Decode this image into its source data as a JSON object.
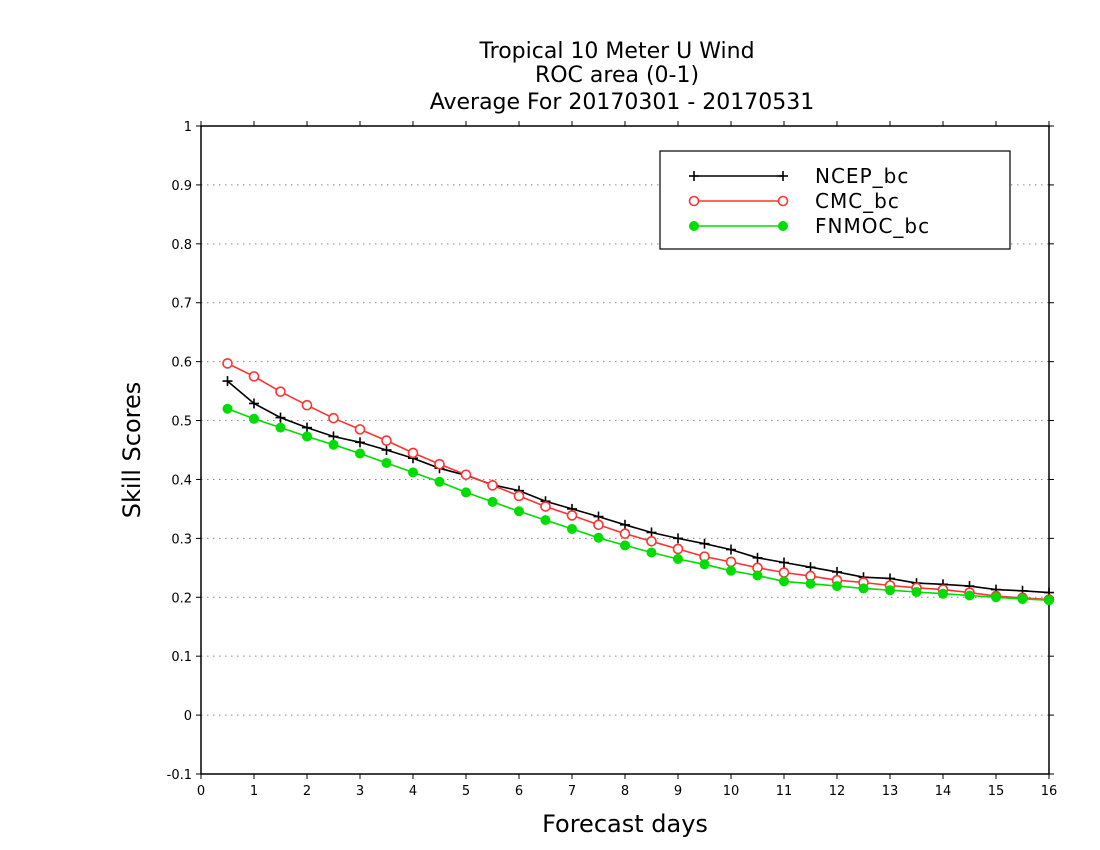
{
  "chart_data": {
    "type": "line",
    "title_lines": [
      "Tropical 10 Meter U Wind",
      "ROC area (0-1)",
      "Average For 20170301 - 20170531"
    ],
    "xlabel": "Forecast days",
    "ylabel": "Skill Scores",
    "xlim": [
      0,
      16
    ],
    "ylim": [
      -0.1,
      1
    ],
    "x_ticks": [
      "0",
      "1",
      "2",
      "3",
      "4",
      "5",
      "6",
      "7",
      "8",
      "9",
      "10",
      "11",
      "12",
      "13",
      "14",
      "15",
      "16"
    ],
    "y_ticks": [
      "-0.1",
      "0",
      "0.1",
      "0.2",
      "0.3",
      "0.4",
      "0.5",
      "0.6",
      "0.7",
      "0.8",
      "0.9",
      "1"
    ],
    "grid": "horizontal dotted",
    "legend_position": "top-right",
    "x": [
      0.5,
      1,
      1.5,
      2,
      2.5,
      3,
      3.5,
      4,
      4.5,
      5,
      5.5,
      6,
      6.5,
      7,
      7.5,
      8,
      8.5,
      9,
      9.5,
      10,
      10.5,
      11,
      11.5,
      12,
      12.5,
      13,
      13.5,
      14,
      14.5,
      15,
      15.5,
      16
    ],
    "series": [
      {
        "name": "NCEP_bc",
        "color": "#000000",
        "marker": "plus",
        "values": [
          0.567,
          0.529,
          0.505,
          0.488,
          0.473,
          0.463,
          0.45,
          0.436,
          0.419,
          0.407,
          0.391,
          0.381,
          0.363,
          0.35,
          0.337,
          0.323,
          0.31,
          0.3,
          0.291,
          0.281,
          0.267,
          0.259,
          0.251,
          0.243,
          0.234,
          0.232,
          0.224,
          0.222,
          0.219,
          0.213,
          0.211,
          0.208
        ]
      },
      {
        "name": "CMC_bc",
        "color": "#ff3333",
        "marker": "open-circle",
        "values": [
          0.597,
          0.575,
          0.549,
          0.526,
          0.504,
          0.485,
          0.466,
          0.445,
          0.426,
          0.408,
          0.39,
          0.372,
          0.354,
          0.339,
          0.323,
          0.308,
          0.295,
          0.282,
          0.269,
          0.26,
          0.25,
          0.242,
          0.236,
          0.229,
          0.225,
          0.22,
          0.216,
          0.213,
          0.208,
          0.202,
          0.199,
          0.196
        ]
      },
      {
        "name": "FNMOC_bc",
        "color": "#00dd00",
        "marker": "filled-circle",
        "values": [
          0.52,
          0.503,
          0.488,
          0.473,
          0.459,
          0.444,
          0.428,
          0.412,
          0.396,
          0.378,
          0.362,
          0.346,
          0.331,
          0.316,
          0.301,
          0.288,
          0.276,
          0.265,
          0.256,
          0.245,
          0.237,
          0.227,
          0.223,
          0.219,
          0.215,
          0.212,
          0.209,
          0.206,
          0.203,
          0.2,
          0.197,
          0.195
        ]
      }
    ]
  }
}
